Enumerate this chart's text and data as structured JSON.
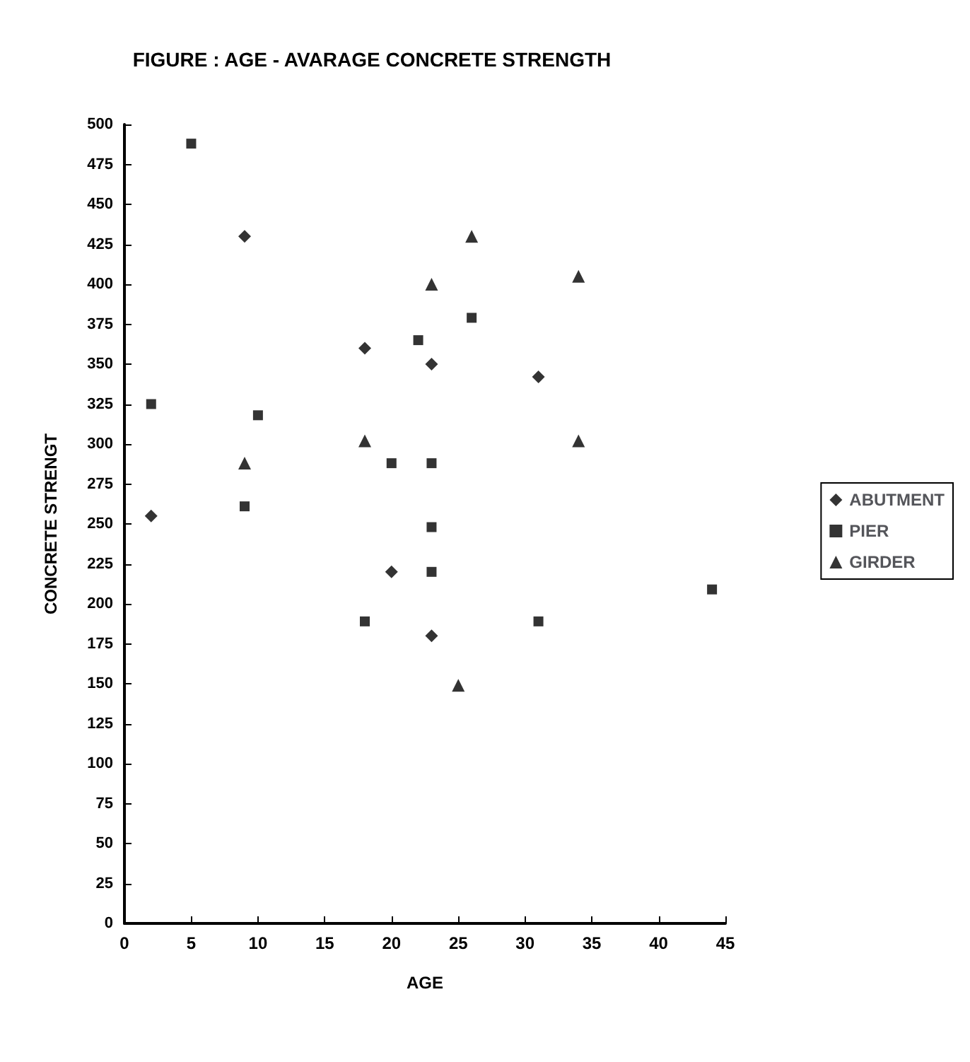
{
  "chart_data": {
    "type": "scatter",
    "title": "FIGURE : AGE - AVARAGE CONCRETE STRENGTH",
    "xlabel": "AGE",
    "ylabel": "CONCRETE STRENGT",
    "xlim": [
      0,
      45
    ],
    "xticks": [
      0,
      5,
      10,
      15,
      20,
      25,
      30,
      35,
      40,
      45
    ],
    "ylim": [
      0,
      500
    ],
    "yticks": [
      0,
      25,
      50,
      75,
      100,
      125,
      150,
      175,
      200,
      225,
      250,
      275,
      300,
      325,
      350,
      375,
      400,
      425,
      450,
      475,
      500
    ],
    "grid": false,
    "legend": "right",
    "series": [
      {
        "name": "ABUTMENT",
        "color": "#000000",
        "marker": "diamond",
        "x": [
          2,
          9,
          18,
          23,
          31,
          20,
          23
        ],
        "values": [
          255,
          430,
          360,
          350,
          342,
          220,
          180
        ]
      },
      {
        "name": "PIER",
        "color": "#000000",
        "marker": "square",
        "x": [
          5,
          2,
          10,
          9,
          22,
          26,
          20,
          23,
          23,
          23,
          18,
          31,
          44
        ],
        "values": [
          488,
          325,
          318,
          261,
          365,
          379,
          288,
          288,
          248,
          220,
          189,
          189,
          209
        ]
      },
      {
        "name": "GIRDER",
        "color": "#000000",
        "marker": "triangle",
        "x": [
          26,
          23,
          34,
          18,
          34,
          9,
          25
        ],
        "values": [
          430,
          400,
          405,
          302,
          302,
          288,
          149
        ]
      }
    ]
  }
}
